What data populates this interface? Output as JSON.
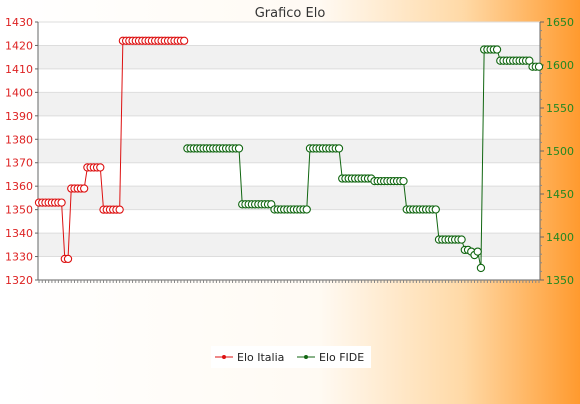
{
  "chart_data": {
    "type": "line",
    "title": "Grafico Elo",
    "legend_position": "bottom-center",
    "grid": true,
    "y_left": {
      "min": 1320,
      "max": 1430,
      "ticks": [
        1320,
        1330,
        1340,
        1350,
        1360,
        1370,
        1380,
        1390,
        1400,
        1410,
        1420,
        1430
      ],
      "color": "#dd2222"
    },
    "y_right": {
      "min": 1350,
      "max": 1650,
      "ticks": [
        1350,
        1400,
        1450,
        1500,
        1550,
        1600,
        1650
      ],
      "color": "#228822"
    },
    "series": [
      {
        "name": "Elo Italia",
        "axis": "left",
        "color": "#dd1111",
        "points": [
          [
            0,
            1353
          ],
          [
            1,
            1353
          ],
          [
            2,
            1353
          ],
          [
            3,
            1353
          ],
          [
            4,
            1353
          ],
          [
            5,
            1353
          ],
          [
            6,
            1353
          ],
          [
            7,
            1353
          ],
          [
            8,
            1329
          ],
          [
            9,
            1329
          ],
          [
            10,
            1359
          ],
          [
            11,
            1359
          ],
          [
            12,
            1359
          ],
          [
            13,
            1359
          ],
          [
            14,
            1359
          ],
          [
            15,
            1368
          ],
          [
            16,
            1368
          ],
          [
            17,
            1368
          ],
          [
            18,
            1368
          ],
          [
            19,
            1368
          ],
          [
            20,
            1350
          ],
          [
            21,
            1350
          ],
          [
            22,
            1350
          ],
          [
            23,
            1350
          ],
          [
            24,
            1350
          ],
          [
            25,
            1350
          ],
          [
            26,
            1422
          ],
          [
            27,
            1422
          ],
          [
            28,
            1422
          ],
          [
            29,
            1422
          ],
          [
            30,
            1422
          ],
          [
            31,
            1422
          ],
          [
            32,
            1422
          ],
          [
            33,
            1422
          ],
          [
            34,
            1422
          ],
          [
            35,
            1422
          ],
          [
            36,
            1422
          ],
          [
            37,
            1422
          ],
          [
            38,
            1422
          ],
          [
            39,
            1422
          ],
          [
            40,
            1422
          ],
          [
            41,
            1422
          ],
          [
            42,
            1422
          ],
          [
            43,
            1422
          ],
          [
            44,
            1422
          ],
          [
            45,
            1422
          ]
        ]
      },
      {
        "name": "Elo FIDE",
        "axis": "right",
        "color": "#116611",
        "points": [
          [
            46,
            1503
          ],
          [
            47,
            1503
          ],
          [
            48,
            1503
          ],
          [
            49,
            1503
          ],
          [
            50,
            1503
          ],
          [
            51,
            1503
          ],
          [
            52,
            1503
          ],
          [
            53,
            1503
          ],
          [
            54,
            1503
          ],
          [
            55,
            1503
          ],
          [
            56,
            1503
          ],
          [
            57,
            1503
          ],
          [
            58,
            1503
          ],
          [
            59,
            1503
          ],
          [
            60,
            1503
          ],
          [
            61,
            1503
          ],
          [
            62,
            1503
          ],
          [
            63,
            1438
          ],
          [
            64,
            1438
          ],
          [
            65,
            1438
          ],
          [
            66,
            1438
          ],
          [
            67,
            1438
          ],
          [
            68,
            1438
          ],
          [
            69,
            1438
          ],
          [
            70,
            1438
          ],
          [
            71,
            1438
          ],
          [
            72,
            1438
          ],
          [
            73,
            1432
          ],
          [
            74,
            1432
          ],
          [
            75,
            1432
          ],
          [
            76,
            1432
          ],
          [
            77,
            1432
          ],
          [
            78,
            1432
          ],
          [
            79,
            1432
          ],
          [
            80,
            1432
          ],
          [
            81,
            1432
          ],
          [
            82,
            1432
          ],
          [
            83,
            1432
          ],
          [
            84,
            1503
          ],
          [
            85,
            1503
          ],
          [
            86,
            1503
          ],
          [
            87,
            1503
          ],
          [
            88,
            1503
          ],
          [
            89,
            1503
          ],
          [
            90,
            1503
          ],
          [
            91,
            1503
          ],
          [
            92,
            1503
          ],
          [
            93,
            1503
          ],
          [
            94,
            1468
          ],
          [
            95,
            1468
          ],
          [
            96,
            1468
          ],
          [
            97,
            1468
          ],
          [
            98,
            1468
          ],
          [
            99,
            1468
          ],
          [
            100,
            1468
          ],
          [
            101,
            1468
          ],
          [
            102,
            1468
          ],
          [
            103,
            1468
          ],
          [
            104,
            1465
          ],
          [
            105,
            1465
          ],
          [
            106,
            1465
          ],
          [
            107,
            1465
          ],
          [
            108,
            1465
          ],
          [
            109,
            1465
          ],
          [
            110,
            1465
          ],
          [
            111,
            1465
          ],
          [
            112,
            1465
          ],
          [
            113,
            1465
          ],
          [
            114,
            1432
          ],
          [
            115,
            1432
          ],
          [
            116,
            1432
          ],
          [
            117,
            1432
          ],
          [
            118,
            1432
          ],
          [
            119,
            1432
          ],
          [
            120,
            1432
          ],
          [
            121,
            1432
          ],
          [
            122,
            1432
          ],
          [
            123,
            1432
          ],
          [
            124,
            1397
          ],
          [
            125,
            1397
          ],
          [
            126,
            1397
          ],
          [
            127,
            1397
          ],
          [
            128,
            1397
          ],
          [
            129,
            1397
          ],
          [
            130,
            1397
          ],
          [
            131,
            1397
          ],
          [
            132,
            1385
          ],
          [
            133,
            1385
          ],
          [
            134,
            1383
          ],
          [
            135,
            1379
          ],
          [
            136,
            1383
          ],
          [
            137,
            1364
          ],
          [
            138,
            1618
          ],
          [
            139,
            1618
          ],
          [
            140,
            1618
          ],
          [
            141,
            1618
          ],
          [
            142,
            1618
          ],
          [
            143,
            1605
          ],
          [
            144,
            1605
          ],
          [
            145,
            1605
          ],
          [
            146,
            1605
          ],
          [
            147,
            1605
          ],
          [
            148,
            1605
          ],
          [
            149,
            1605
          ],
          [
            150,
            1605
          ],
          [
            151,
            1605
          ],
          [
            152,
            1605
          ],
          [
            153,
            1598
          ],
          [
            154,
            1598
          ],
          [
            155,
            1598
          ]
        ]
      }
    ],
    "x_count": 156
  }
}
